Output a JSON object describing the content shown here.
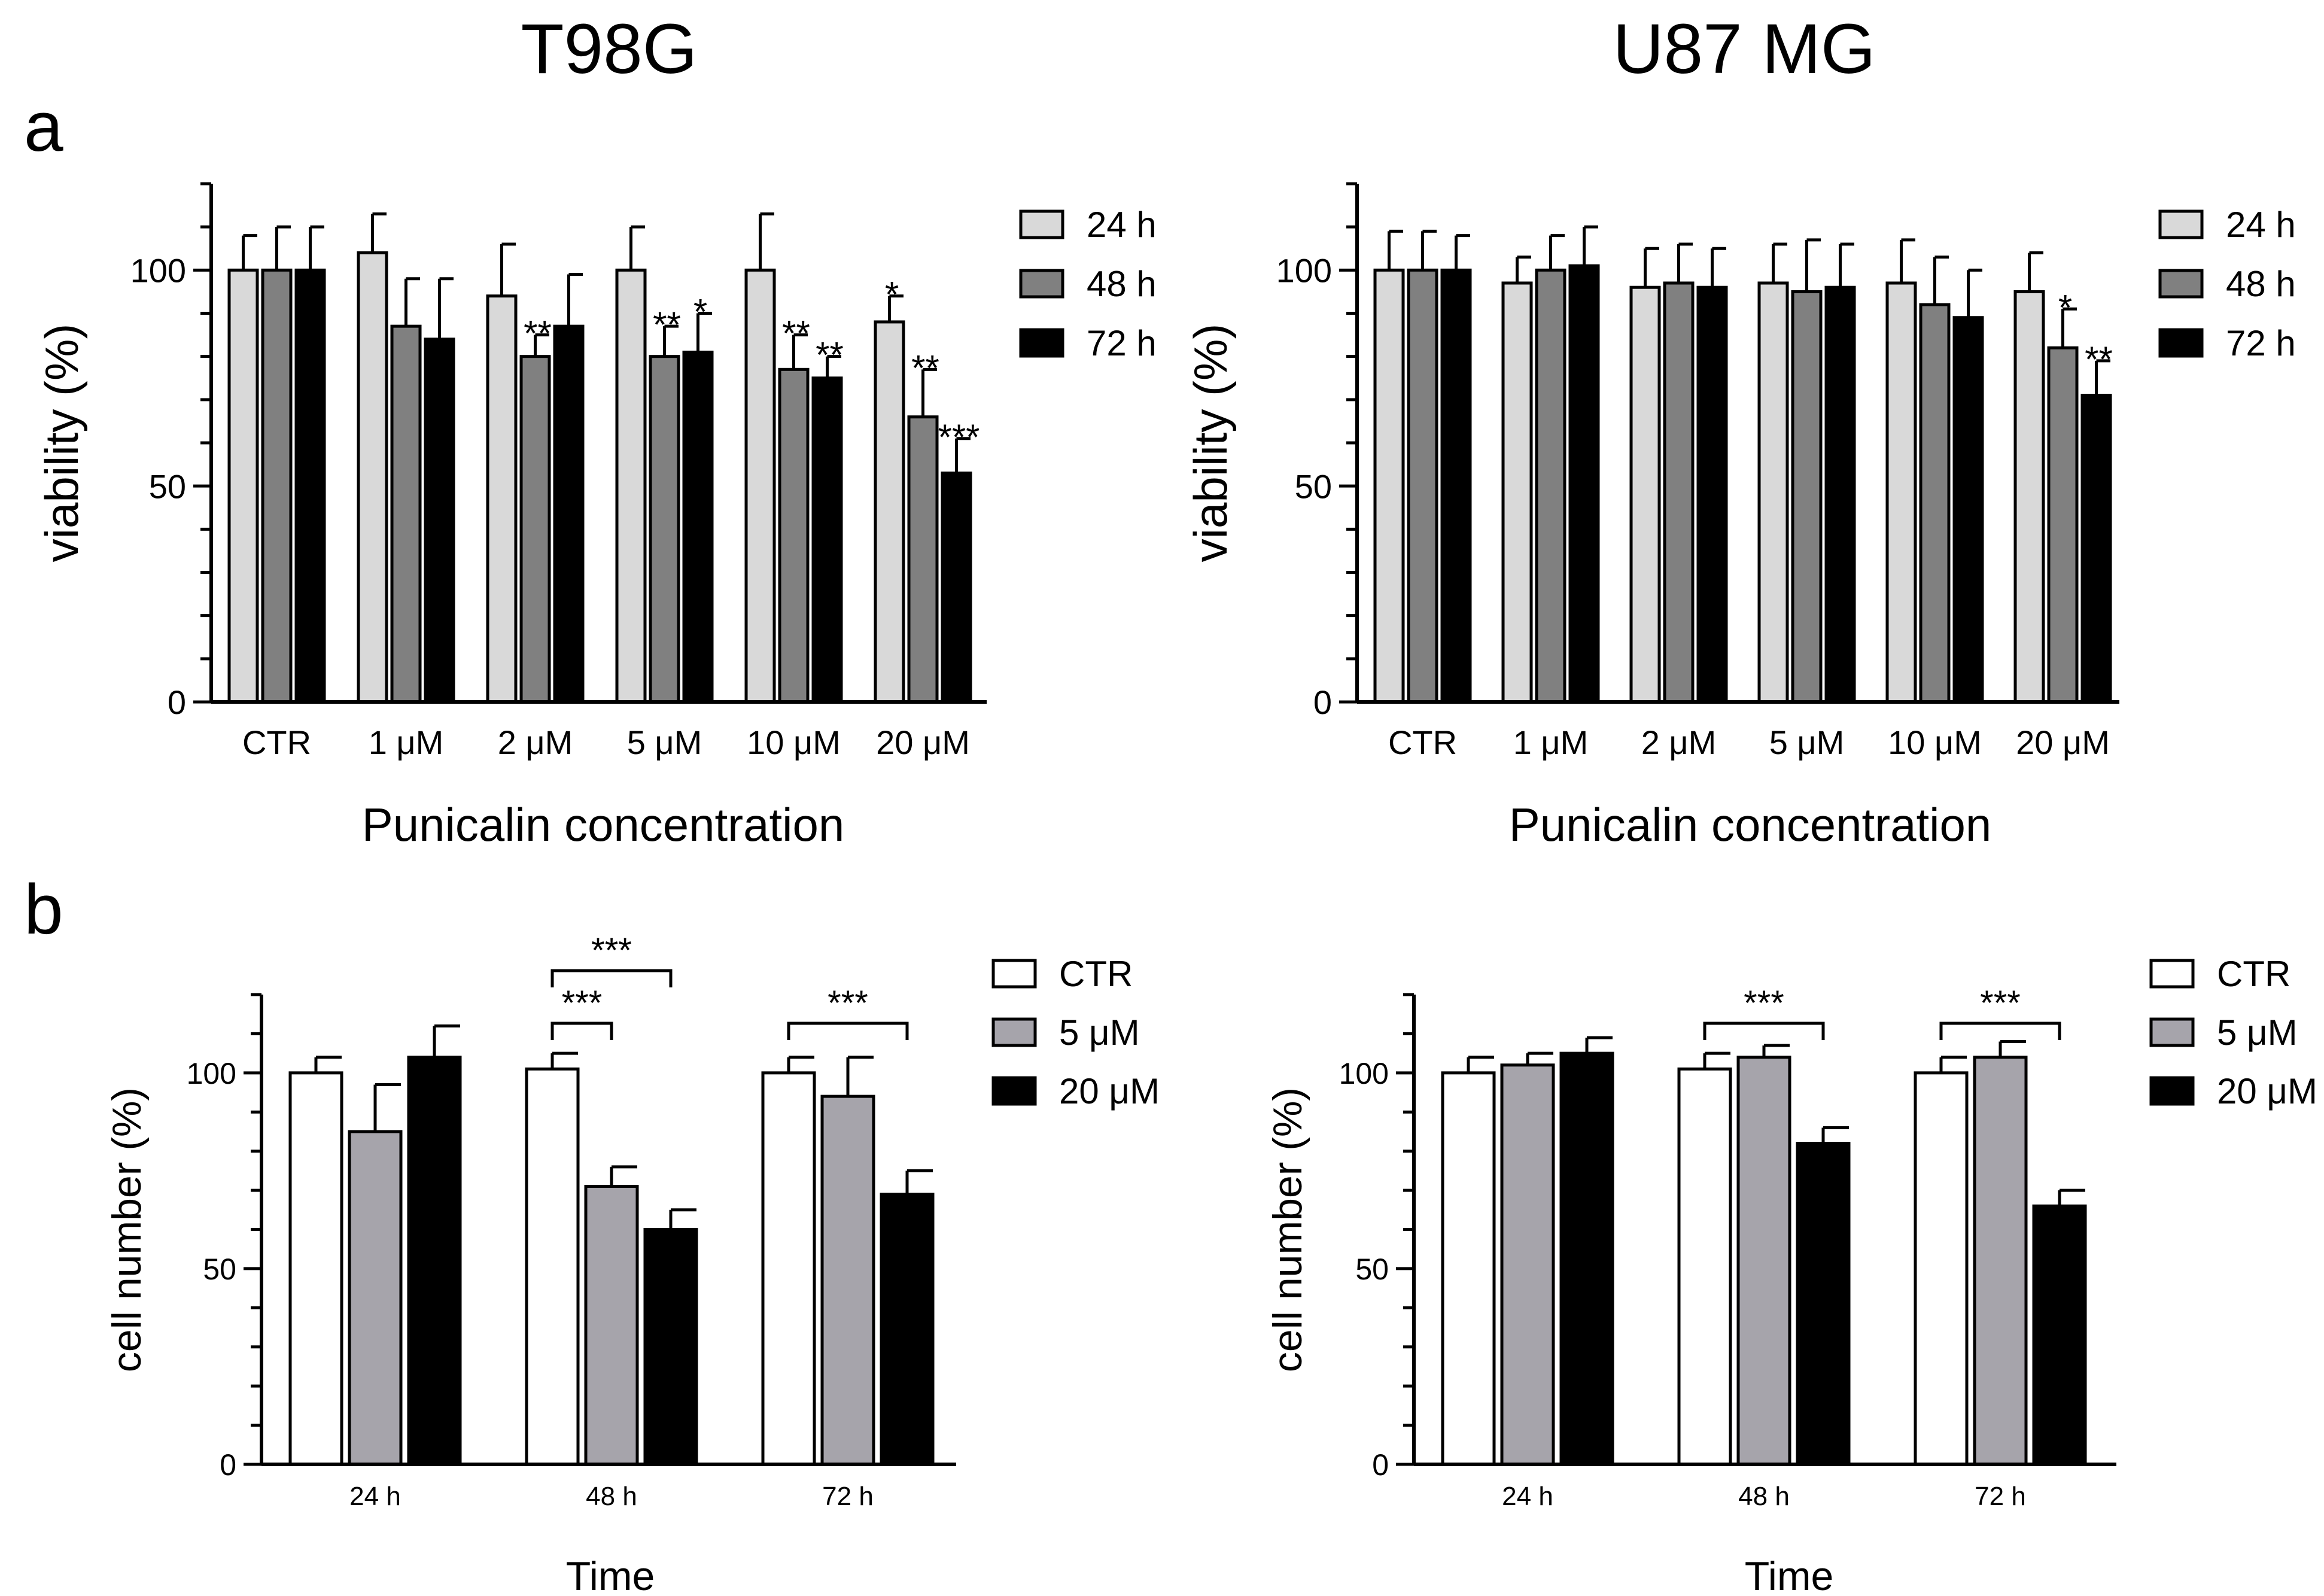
{
  "figure": {
    "col_titles": [
      "T98G",
      "U87 MG"
    ],
    "panel_labels": [
      "a",
      "b"
    ]
  },
  "colors": {
    "h24": "#d9d9d9",
    "h48": "#808080",
    "h72": "#000000",
    "ctr": "#ffffff",
    "uM5": "#a6a4ab",
    "uM20": "#000000",
    "stroke": "#000000"
  },
  "chart_data": [
    {
      "id": "a-T98G",
      "type": "bar",
      "panel": "a",
      "title": "T98G",
      "xlabel": "Punicalin concentration",
      "ylabel": "viability (%)",
      "ylim": [
        0,
        120
      ],
      "yticks": [
        0,
        50,
        100
      ],
      "categories": [
        "CTR",
        "1 μM",
        "2 μM",
        "5 μM",
        "10 μM",
        "20 μM"
      ],
      "series": [
        {
          "name": "24 h",
          "color_key": "h24",
          "values": [
            100,
            104,
            94,
            100,
            100,
            88
          ],
          "errors": [
            8,
            9,
            12,
            10,
            13,
            6
          ]
        },
        {
          "name": "48 h",
          "color_key": "h48",
          "values": [
            100,
            87,
            80,
            80,
            77,
            66
          ],
          "errors": [
            10,
            11,
            5,
            7,
            8,
            11
          ]
        },
        {
          "name": "72 h",
          "color_key": "h72",
          "values": [
            100,
            84,
            87,
            81,
            75,
            53
          ],
          "errors": [
            10,
            14,
            12,
            9,
            5,
            8
          ]
        }
      ],
      "significance": [
        {
          "category": 1,
          "series": 1,
          "label": ""
        },
        {
          "category": 2,
          "series": 1,
          "label": "**"
        },
        {
          "category": 3,
          "series": 1,
          "label": "**"
        },
        {
          "category": 3,
          "series": 2,
          "label": "*"
        },
        {
          "category": 4,
          "series": 1,
          "label": "**"
        },
        {
          "category": 4,
          "series": 2,
          "label": "**"
        },
        {
          "category": 5,
          "series": 0,
          "label": "*"
        },
        {
          "category": 5,
          "series": 1,
          "label": "**"
        },
        {
          "category": 5,
          "series": 2,
          "label": "***"
        }
      ],
      "brackets": [],
      "legend": [
        "24 h",
        "48 h",
        "72 h"
      ],
      "legend_position": "top-right"
    },
    {
      "id": "a-U87",
      "type": "bar",
      "panel": "a",
      "title": "U87 MG",
      "xlabel": "Punicalin concentration",
      "ylabel": "viability (%)",
      "ylim": [
        0,
        120
      ],
      "yticks": [
        0,
        50,
        100
      ],
      "categories": [
        "CTR",
        "1 μM",
        "2 μM",
        "5 μM",
        "10 μM",
        "20 μM"
      ],
      "series": [
        {
          "name": "24 h",
          "color_key": "h24",
          "values": [
            100,
            97,
            96,
            97,
            97,
            95
          ],
          "errors": [
            9,
            6,
            9,
            9,
            10,
            9
          ]
        },
        {
          "name": "48 h",
          "color_key": "h48",
          "values": [
            100,
            100,
            97,
            95,
            92,
            82
          ],
          "errors": [
            9,
            8,
            9,
            12,
            11,
            9
          ]
        },
        {
          "name": "72 h",
          "color_key": "h72",
          "values": [
            100,
            101,
            96,
            96,
            89,
            71
          ],
          "errors": [
            8,
            9,
            9,
            10,
            11,
            8
          ]
        }
      ],
      "significance": [
        {
          "category": 5,
          "series": 1,
          "label": "*"
        },
        {
          "category": 5,
          "series": 2,
          "label": "**"
        }
      ],
      "brackets": [],
      "legend": [
        "24 h",
        "48 h",
        "72 h"
      ],
      "legend_position": "top-right"
    },
    {
      "id": "b-T98G",
      "type": "bar",
      "panel": "b",
      "title": "T98G",
      "xlabel": "Time",
      "ylabel": "cell number (%)",
      "ylim": [
        0,
        120
      ],
      "yticks": [
        0,
        50,
        100
      ],
      "categories": [
        "24 h",
        "48 h",
        "72 h"
      ],
      "series": [
        {
          "name": "CTR",
          "color_key": "ctr",
          "values": [
            100,
            101,
            100
          ],
          "errors": [
            4,
            4,
            4
          ]
        },
        {
          "name": "5 μM",
          "color_key": "uM5",
          "values": [
            85,
            71,
            94
          ],
          "errors": [
            12,
            5,
            10
          ]
        },
        {
          "name": "20 μM",
          "color_key": "uM20",
          "values": [
            104,
            60,
            69
          ],
          "errors": [
            8,
            5,
            6
          ]
        }
      ],
      "significance": [],
      "brackets": [
        {
          "category": 1,
          "from_series": 0,
          "to_series": 2,
          "label": "***",
          "level": 2
        },
        {
          "category": 1,
          "from_series": 0,
          "to_series": 1,
          "label": "***",
          "level": 1
        },
        {
          "category": 2,
          "from_series": 0,
          "to_series": 2,
          "label": "***",
          "level": 1
        }
      ],
      "legend": [
        "CTR",
        "5 μM",
        "20 μM"
      ],
      "legend_position": "top-right"
    },
    {
      "id": "b-U87",
      "type": "bar",
      "panel": "b",
      "title": "U87 MG",
      "xlabel": "Time",
      "ylabel": "cell number (%)",
      "ylim": [
        0,
        120
      ],
      "yticks": [
        0,
        50,
        100
      ],
      "categories": [
        "24 h",
        "48 h",
        "72 h"
      ],
      "series": [
        {
          "name": "CTR",
          "color_key": "ctr",
          "values": [
            100,
            101,
            100
          ],
          "errors": [
            4,
            4,
            4
          ]
        },
        {
          "name": "5 μM",
          "color_key": "uM5",
          "values": [
            102,
            104,
            104
          ],
          "errors": [
            3,
            3,
            4
          ]
        },
        {
          "name": "20 μM",
          "color_key": "uM20",
          "values": [
            105,
            82,
            66
          ],
          "errors": [
            4,
            4,
            4
          ]
        }
      ],
      "significance": [],
      "brackets": [
        {
          "category": 1,
          "from_series": 0,
          "to_series": 2,
          "label": "***",
          "level": 1
        },
        {
          "category": 2,
          "from_series": 0,
          "to_series": 2,
          "label": "***",
          "level": 1
        }
      ],
      "legend": [
        "CTR",
        "5 μM",
        "20 μM"
      ],
      "legend_position": "top-right"
    }
  ]
}
